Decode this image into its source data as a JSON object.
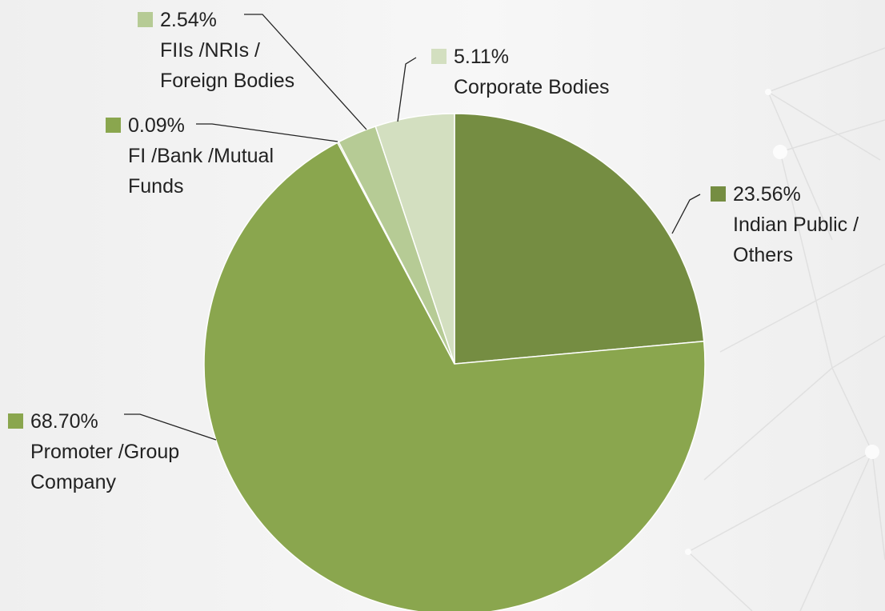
{
  "chart_data": {
    "type": "pie",
    "categories": [
      "Indian Public / Others",
      "Promoter /Group Company",
      "FI /Bank /Mutual Funds",
      "FIIs /NRIs / Foreign Bodies",
      "Corporate Bodies"
    ],
    "values": [
      23.56,
      68.7,
      0.09,
      2.54,
      5.11
    ],
    "value_labels": [
      "23.56%",
      "68.70%",
      "0.09%",
      "2.54%",
      "5.11%"
    ],
    "colors": [
      "#758d42",
      "#8aa64e",
      "#8aa64e",
      "#b6cb95",
      "#d3dfc0"
    ]
  }
}
